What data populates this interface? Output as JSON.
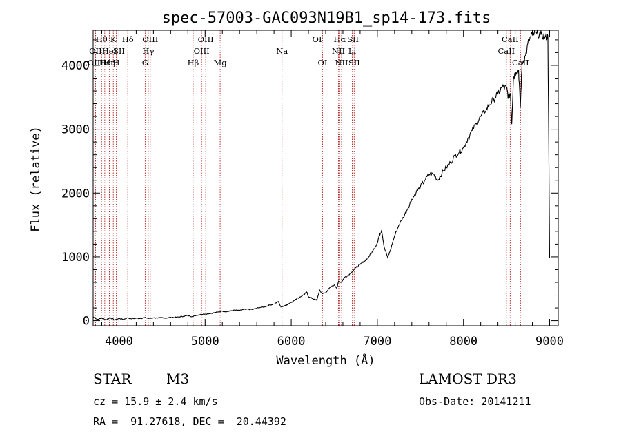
{
  "chart_data": {
    "type": "line",
    "title": "spec-57003-GAC093N19B1_sp14-173.fits",
    "xlabel": "Wavelength (Å)",
    "ylabel": "Flux (relative)",
    "xlim": [
      3700,
      9100
    ],
    "ylim": [
      -80,
      4550
    ],
    "xticks": [
      4000,
      5000,
      6000,
      7000,
      8000,
      9000
    ],
    "yticks": [
      0,
      1000,
      2000,
      3000,
      4000
    ],
    "series": [
      {
        "name": "flux",
        "points": [
          [
            3700,
            60
          ],
          [
            3750,
            20
          ],
          [
            3800,
            40
          ],
          [
            3850,
            15
          ],
          [
            3900,
            45
          ],
          [
            3950,
            10
          ],
          [
            4000,
            35
          ],
          [
            4050,
            20
          ],
          [
            4100,
            45
          ],
          [
            4150,
            30
          ],
          [
            4200,
            40
          ],
          [
            4250,
            35
          ],
          [
            4300,
            50
          ],
          [
            4350,
            35
          ],
          [
            4400,
            45
          ],
          [
            4450,
            40
          ],
          [
            4500,
            50
          ],
          [
            4550,
            40
          ],
          [
            4600,
            55
          ],
          [
            4650,
            50
          ],
          [
            4700,
            60
          ],
          [
            4750,
            70
          ],
          [
            4800,
            80
          ],
          [
            4850,
            65
          ],
          [
            4900,
            85
          ],
          [
            4950,
            100
          ],
          [
            5000,
            105
          ],
          [
            5050,
            110
          ],
          [
            5100,
            125
          ],
          [
            5150,
            135
          ],
          [
            5200,
            150
          ],
          [
            5250,
            140
          ],
          [
            5300,
            155
          ],
          [
            5350,
            165
          ],
          [
            5400,
            160
          ],
          [
            5450,
            175
          ],
          [
            5500,
            180
          ],
          [
            5550,
            175
          ],
          [
            5600,
            195
          ],
          [
            5650,
            210
          ],
          [
            5700,
            220
          ],
          [
            5750,
            245
          ],
          [
            5800,
            260
          ],
          [
            5850,
            300
          ],
          [
            5880,
            215
          ],
          [
            5920,
            235
          ],
          [
            5950,
            250
          ],
          [
            6000,
            285
          ],
          [
            6050,
            335
          ],
          [
            6100,
            370
          ],
          [
            6150,
            410
          ],
          [
            6180,
            450
          ],
          [
            6200,
            375
          ],
          [
            6250,
            345
          ],
          [
            6280,
            325
          ],
          [
            6300,
            330
          ],
          [
            6330,
            480
          ],
          [
            6360,
            420
          ],
          [
            6400,
            440
          ],
          [
            6450,
            520
          ],
          [
            6500,
            560
          ],
          [
            6530,
            510
          ],
          [
            6550,
            620
          ],
          [
            6580,
            600
          ],
          [
            6620,
            680
          ],
          [
            6650,
            700
          ],
          [
            6700,
            760
          ],
          [
            6750,
            830
          ],
          [
            6800,
            880
          ],
          [
            6850,
            930
          ],
          [
            6900,
            1000
          ],
          [
            6950,
            1100
          ],
          [
            7000,
            1220
          ],
          [
            7020,
            1330
          ],
          [
            7050,
            1420
          ],
          [
            7080,
            1150
          ],
          [
            7120,
            990
          ],
          [
            7150,
            1100
          ],
          [
            7200,
            1330
          ],
          [
            7250,
            1500
          ],
          [
            7300,
            1620
          ],
          [
            7350,
            1750
          ],
          [
            7400,
            1900
          ],
          [
            7450,
            2010
          ],
          [
            7500,
            2100
          ],
          [
            7550,
            2200
          ],
          [
            7600,
            2290
          ],
          [
            7650,
            2300
          ],
          [
            7700,
            2200
          ],
          [
            7750,
            2310
          ],
          [
            7800,
            2400
          ],
          [
            7850,
            2480
          ],
          [
            7900,
            2580
          ],
          [
            7950,
            2640
          ],
          [
            8000,
            2710
          ],
          [
            8050,
            2850
          ],
          [
            8100,
            2980
          ],
          [
            8150,
            3090
          ],
          [
            8200,
            3200
          ],
          [
            8250,
            3280
          ],
          [
            8300,
            3380
          ],
          [
            8350,
            3470
          ],
          [
            8400,
            3560
          ],
          [
            8450,
            3660
          ],
          [
            8500,
            3650
          ],
          [
            8520,
            3500
          ],
          [
            8545,
            3560
          ],
          [
            8560,
            3080
          ],
          [
            8580,
            3820
          ],
          [
            8610,
            3900
          ],
          [
            8640,
            3920
          ],
          [
            8660,
            3350
          ],
          [
            8680,
            4040
          ],
          [
            8720,
            4150
          ],
          [
            8760,
            4400
          ],
          [
            8800,
            4480
          ],
          [
            8850,
            4500
          ],
          [
            8900,
            4480
          ],
          [
            8950,
            4450
          ],
          [
            8980,
            4450
          ],
          [
            9000,
            980
          ]
        ]
      }
    ],
    "lines": [
      {
        "name": "Hθ",
        "x": 3798,
        "row": 1
      },
      {
        "name": "OII",
        "x": 3727,
        "row": 2
      },
      {
        "name": "OIII",
        "x": 3727,
        "row": 3
      },
      {
        "name": "Hε",
        "x": 3835,
        "row": 3
      },
      {
        "name": "HeI",
        "x": 3889,
        "row": 2
      },
      {
        "name": "Hη",
        "x": 3889,
        "row": 3
      },
      {
        "name": "K",
        "x": 3934,
        "row": 1
      },
      {
        "name": "SII",
        "x": 4000,
        "row": 2
      },
      {
        "name": "H",
        "x": 3969,
        "row": 3
      },
      {
        "name": "Hδ",
        "x": 4102,
        "row": 1
      },
      {
        "name": "OIII",
        "x": 4363,
        "row": 1
      },
      {
        "name": "Hγ",
        "x": 4340,
        "row": 2
      },
      {
        "name": "G",
        "x": 4304,
        "row": 3
      },
      {
        "name": "OIII",
        "x": 5007,
        "row": 1
      },
      {
        "name": "OIII",
        "x": 4959,
        "row": 2
      },
      {
        "name": "Hβ",
        "x": 4861,
        "row": 3
      },
      {
        "name": "Mg",
        "x": 5175,
        "row": 3
      },
      {
        "name": "Na",
        "x": 5893,
        "row": 2
      },
      {
        "name": "OI",
        "x": 6300,
        "row": 1
      },
      {
        "name": "OI",
        "x": 6364,
        "row": 3
      },
      {
        "name": "Hα",
        "x": 6563,
        "row": 1
      },
      {
        "name": "SII",
        "x": 6717,
        "row": 1
      },
      {
        "name": "NII",
        "x": 6548,
        "row": 2
      },
      {
        "name": "Li",
        "x": 6708,
        "row": 2
      },
      {
        "name": "NII",
        "x": 6584,
        "row": 3
      },
      {
        "name": "SII",
        "x": 6731,
        "row": 3
      },
      {
        "name": "CaII",
        "x": 8542,
        "row": 1
      },
      {
        "name": "CaII",
        "x": 8498,
        "row": 2
      },
      {
        "name": "CaII",
        "x": 8662,
        "row": 3
      }
    ]
  },
  "info": {
    "class": "STAR",
    "subclass": "M3",
    "survey": "LAMOST DR3",
    "cz": "cz = 15.9 ± 2.4 km/s",
    "obs_date": "Obs-Date: 20141211",
    "radec": "RA =  91.27618, DEC =  20.44392"
  }
}
